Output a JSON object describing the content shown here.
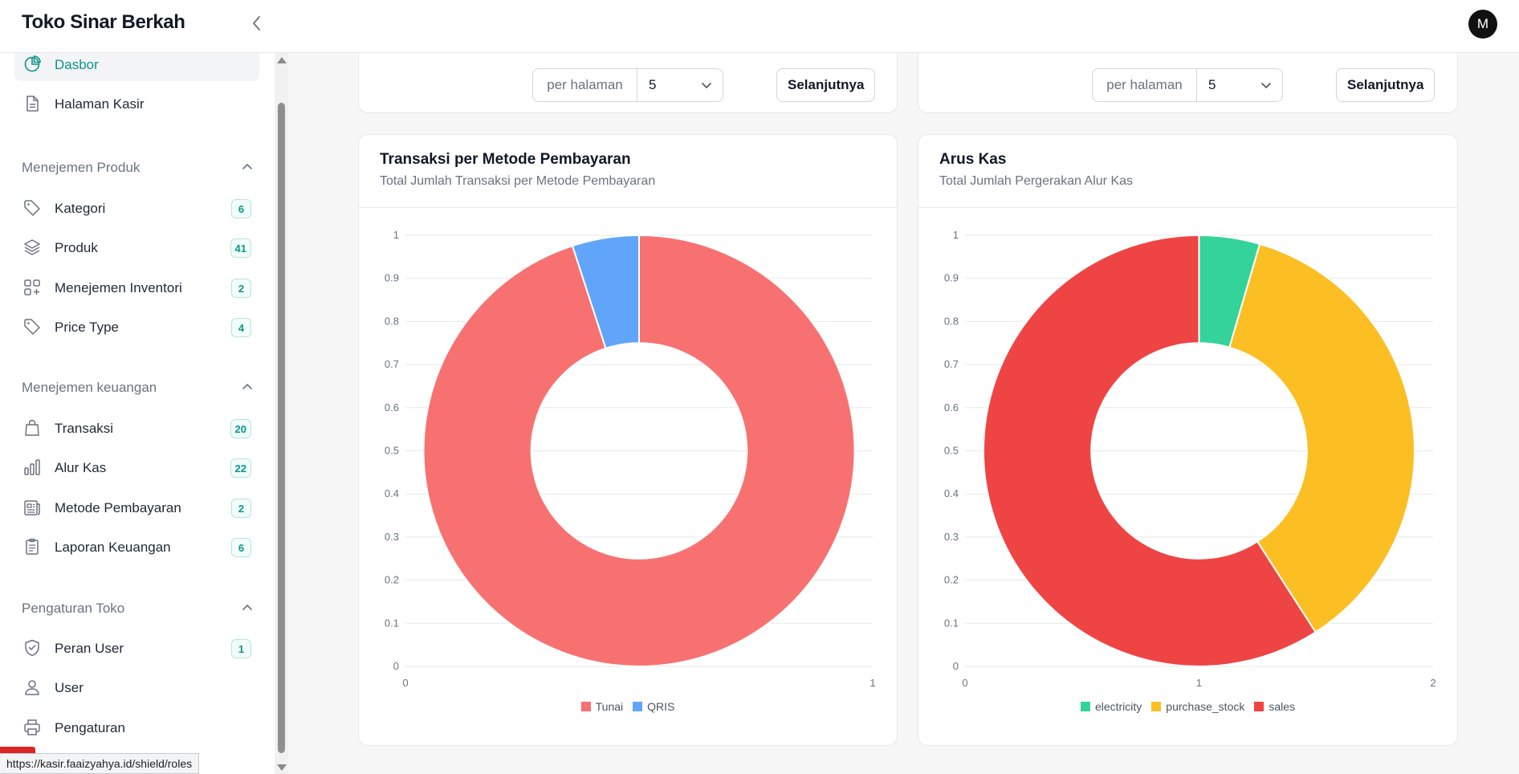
{
  "app": {
    "title": "Toko Sinar Berkah",
    "avatar_initial": "M"
  },
  "sidebar": {
    "top_items": [
      {
        "label": "Dasbor",
        "icon": "pie-chart-icon",
        "active": true
      },
      {
        "label": "Halaman Kasir",
        "icon": "document-icon"
      }
    ],
    "groups": [
      {
        "title": "Menejemen Produk",
        "items": [
          {
            "label": "Kategori",
            "icon": "tag-icon",
            "badge": "6"
          },
          {
            "label": "Produk",
            "icon": "layers-icon",
            "badge": "41"
          },
          {
            "label": "Menejemen Inventori",
            "icon": "squares-plus-icon",
            "badge": "2"
          },
          {
            "label": "Price Type",
            "icon": "tag-icon",
            "badge": "4"
          }
        ]
      },
      {
        "title": "Menejemen keuangan",
        "items": [
          {
            "label": "Transaksi",
            "icon": "shopping-bag-icon",
            "badge": "20"
          },
          {
            "label": "Alur Kas",
            "icon": "bar-chart-icon",
            "badge": "22"
          },
          {
            "label": "Metode Pembayaran",
            "icon": "newspaper-icon",
            "badge": "2"
          },
          {
            "label": "Laporan Keuangan",
            "icon": "clipboard-icon",
            "badge": "6"
          }
        ]
      },
      {
        "title": "Pengaturan Toko",
        "items": [
          {
            "label": "Peran User",
            "icon": "shield-check-icon",
            "badge": "1"
          },
          {
            "label": "User",
            "icon": "user-icon"
          },
          {
            "label": "Pengaturan",
            "icon": "printer-icon"
          }
        ]
      }
    ]
  },
  "pagination": {
    "per_page_label": "per halaman",
    "per_page_value": "5",
    "next_label": "Selanjutnya"
  },
  "charts": [
    {
      "title": "Transaksi per Metode Pembayaran",
      "subtitle": "Total Jumlah Transaksi per Metode Pembayaran"
    },
    {
      "title": "Arus Kas",
      "subtitle": "Total Jumlah Pergerakan Alur Kas"
    }
  ],
  "chart_data": [
    {
      "type": "pie",
      "title": "Transaksi per Metode Pembayaran",
      "subtitle": "Total Jumlah Transaksi per Metode Pembayaran",
      "labels": [
        "Tunai",
        "QRIS"
      ],
      "values": [
        19,
        1
      ],
      "colors": [
        "#f87171",
        "#60a5fa"
      ],
      "doughnut": true,
      "y_ticks": [
        "0",
        "0.1",
        "0.2",
        "0.3",
        "0.4",
        "0.5",
        "0.6",
        "0.7",
        "0.8",
        "0.9",
        "1"
      ],
      "x_ticks": [
        "0",
        "1"
      ],
      "grid": true,
      "legend_position": "bottom"
    },
    {
      "type": "pie",
      "title": "Arus Kas",
      "subtitle": "Total Jumlah Pergerakan Alur Kas",
      "labels": [
        "electricity",
        "purchase_stock",
        "sales"
      ],
      "values": [
        1,
        8,
        13
      ],
      "colors": [
        "#34d399",
        "#fbbf24",
        "#ef4444"
      ],
      "doughnut": true,
      "y_ticks": [
        "0",
        "0.1",
        "0.2",
        "0.3",
        "0.4",
        "0.5",
        "0.6",
        "0.7",
        "0.8",
        "0.9",
        "1"
      ],
      "x_ticks": [
        "0",
        "1",
        "2"
      ],
      "grid": true,
      "legend_position": "bottom"
    }
  ],
  "status_url": "https://kasir.faaizyahya.id/shield/roles"
}
